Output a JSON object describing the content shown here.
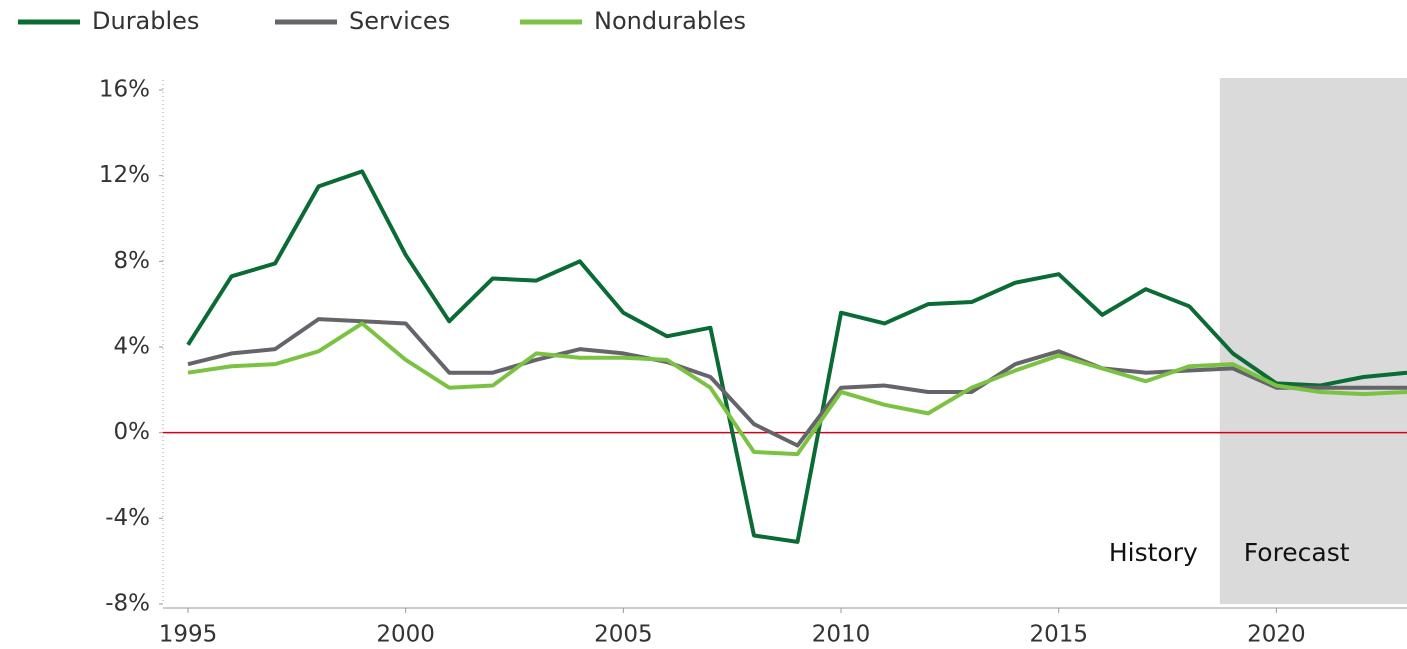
{
  "chart_data": {
    "type": "line",
    "x": [
      1995,
      1996,
      1997,
      1998,
      1999,
      2000,
      2001,
      2002,
      2003,
      2004,
      2005,
      2006,
      2007,
      2008,
      2009,
      2010,
      2011,
      2012,
      2013,
      2014,
      2015,
      2016,
      2017,
      2018,
      2019,
      2020,
      2021,
      2022,
      2023
    ],
    "series": [
      {
        "name": "Durables",
        "color": "#0b6b35",
        "values": [
          4.1,
          7.3,
          7.9,
          11.5,
          12.2,
          8.3,
          5.2,
          7.2,
          7.1,
          8.0,
          5.6,
          4.5,
          4.9,
          -4.8,
          -5.1,
          5.6,
          5.1,
          6.0,
          6.1,
          7.0,
          7.4,
          5.5,
          6.7,
          5.9,
          3.7,
          2.3,
          2.2,
          2.6,
          2.8
        ]
      },
      {
        "name": "Services",
        "color": "#65646b",
        "values": [
          3.2,
          3.7,
          3.9,
          5.3,
          5.2,
          5.1,
          2.8,
          2.8,
          3.4,
          3.9,
          3.7,
          3.3,
          2.6,
          0.4,
          -0.6,
          2.1,
          2.2,
          1.9,
          1.9,
          3.2,
          3.8,
          3.0,
          2.8,
          2.9,
          3.0,
          2.1,
          2.1,
          2.1,
          2.1
        ]
      },
      {
        "name": "Nondurables",
        "color": "#7cc242",
        "values": [
          2.8,
          3.1,
          3.2,
          3.8,
          5.1,
          3.4,
          2.1,
          2.2,
          3.7,
          3.5,
          3.5,
          3.4,
          2.1,
          -0.9,
          -1.0,
          1.9,
          1.3,
          0.9,
          2.1,
          2.9,
          3.6,
          3.0,
          2.4,
          3.1,
          3.2,
          2.2,
          1.9,
          1.8,
          1.9
        ]
      }
    ],
    "xlim": [
      1995,
      2023
    ],
    "xticks": [
      1995,
      2000,
      2005,
      2010,
      2015,
      2020
    ],
    "ylim": [
      -8,
      16
    ],
    "yticks": [
      {
        "value": -8,
        "label": "-8%"
      },
      {
        "value": -4,
        "label": "-4%"
      },
      {
        "value": 0,
        "label": "0%"
      },
      {
        "value": 4,
        "label": "4%"
      },
      {
        "value": 8,
        "label": "8%"
      },
      {
        "value": 12,
        "label": "12%"
      },
      {
        "value": 16,
        "label": "16%"
      }
    ],
    "zero_line_color": "#d0021b",
    "forecast_start": 2018.7,
    "history_label": "History",
    "forecast_label": "Forecast",
    "legend": "top-left"
  }
}
